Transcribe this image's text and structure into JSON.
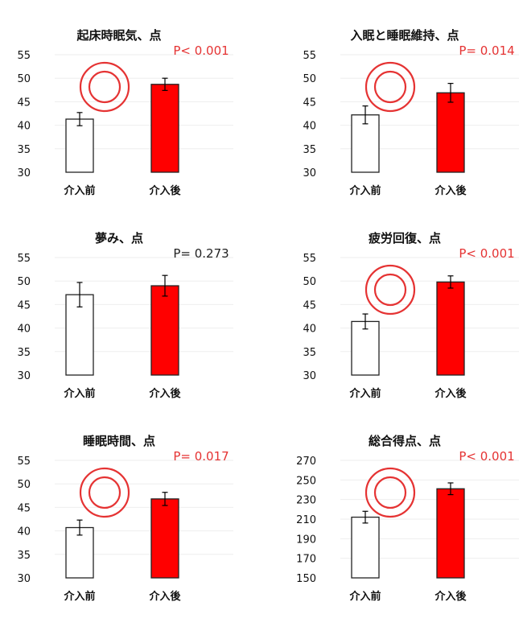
{
  "colors": {
    "after_bar": "#ff0000",
    "before_bar": "#ffffff",
    "bar_stroke": "#222222",
    "significant_p": "#e53333",
    "normal_p": "#222222",
    "circle": "#e53333",
    "grid": "#eeeeee",
    "text": "#111111"
  },
  "chart_data": [
    {
      "type": "bar",
      "title": "起床時眠気、点",
      "categories": [
        "介入前",
        "介入後"
      ],
      "values": [
        41.3,
        48.7
      ],
      "errors": [
        1.4,
        1.3
      ],
      "ylim": [
        30,
        55
      ],
      "yticks": [
        "30",
        "35",
        "40",
        "45",
        "50",
        "55"
      ],
      "p_text": "P< 0.001",
      "significant": true,
      "mark_icon": "double-circle-icon"
    },
    {
      "type": "bar",
      "title": "入眠と睡眠維持、点",
      "categories": [
        "介入前",
        "介入後"
      ],
      "values": [
        42.2,
        46.9
      ],
      "errors": [
        1.9,
        2.0
      ],
      "ylim": [
        30,
        55
      ],
      "yticks": [
        "30",
        "35",
        "40",
        "45",
        "50",
        "55"
      ],
      "p_text": "P= 0.014",
      "significant": true,
      "mark_icon": "double-circle-icon"
    },
    {
      "type": "bar",
      "title": "夢み、点",
      "categories": [
        "介入前",
        "介入後"
      ],
      "values": [
        47.1,
        49.0
      ],
      "errors": [
        2.6,
        2.2
      ],
      "ylim": [
        30,
        55
      ],
      "yticks": [
        "30",
        "35",
        "40",
        "45",
        "50",
        "55"
      ],
      "p_text": "P= 0.273",
      "significant": false,
      "mark_icon": ""
    },
    {
      "type": "bar",
      "title": "疲労回復、点",
      "categories": [
        "介入前",
        "介入後"
      ],
      "values": [
        41.4,
        49.8
      ],
      "errors": [
        1.6,
        1.3
      ],
      "ylim": [
        30,
        55
      ],
      "yticks": [
        "30",
        "35",
        "40",
        "45",
        "50",
        "55"
      ],
      "p_text": "P< 0.001",
      "significant": true,
      "mark_icon": "double-circle-icon"
    },
    {
      "type": "bar",
      "title": "睡眠時間、点",
      "categories": [
        "介入前",
        "介入後"
      ],
      "values": [
        40.7,
        46.8
      ],
      "errors": [
        1.6,
        1.4
      ],
      "ylim": [
        30,
        55
      ],
      "yticks": [
        "30",
        "35",
        "40",
        "45",
        "50",
        "55"
      ],
      "p_text": "P= 0.017",
      "significant": true,
      "mark_icon": "double-circle-icon"
    },
    {
      "type": "bar",
      "title": "総合得点、点",
      "categories": [
        "介入前",
        "介入後"
      ],
      "values": [
        212,
        241
      ],
      "errors": [
        6,
        6
      ],
      "ylim": [
        150,
        270
      ],
      "yticks": [
        "150",
        "170",
        "190",
        "210",
        "230",
        "250",
        "270"
      ],
      "p_text": "P< 0.001",
      "significant": true,
      "mark_icon": "double-circle-icon"
    }
  ]
}
